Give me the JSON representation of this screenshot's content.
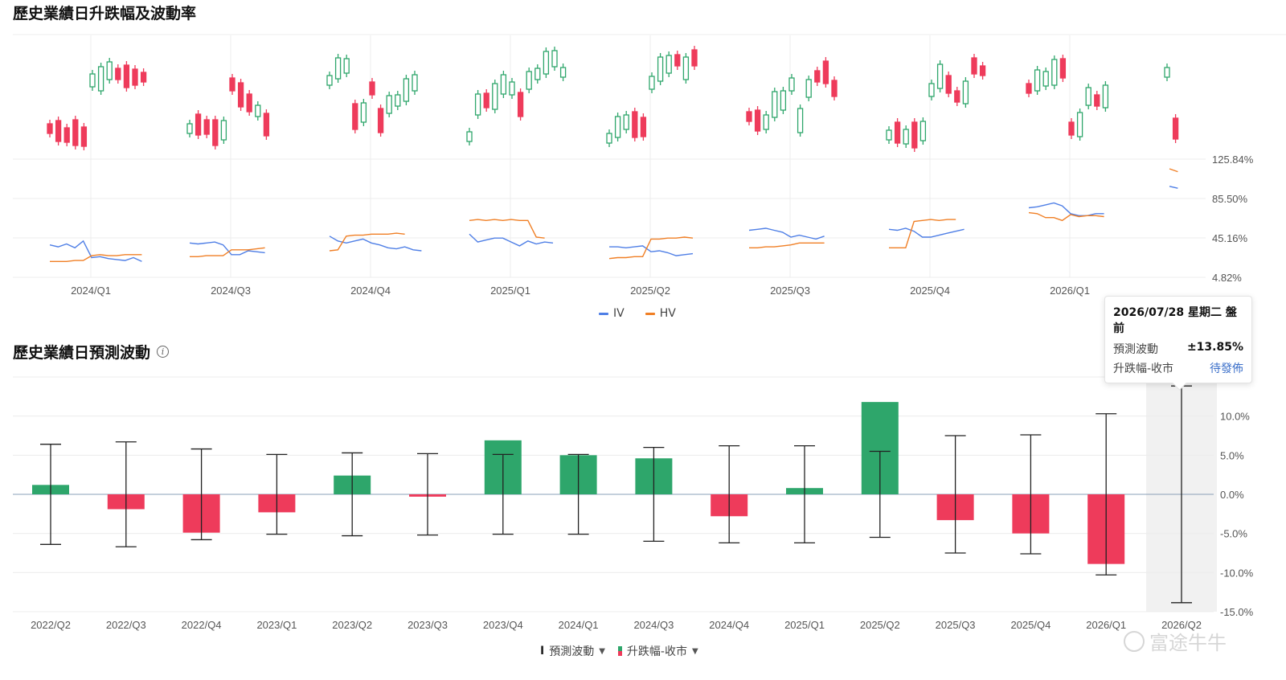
{
  "section1": {
    "title": "歷史業績日升跌幅及波動率",
    "legend": [
      {
        "label": "IV",
        "color": "#4f7fe6"
      },
      {
        "label": "HV",
        "color": "#f07f25"
      }
    ]
  },
  "section2": {
    "title": "歷史業績日預測波動",
    "info_icon": "info-icon",
    "legend": [
      {
        "label": "預測波動",
        "icon": "error-bar-icon"
      },
      {
        "label": "升跌幅-收市",
        "icon": "bar-icon"
      }
    ]
  },
  "tooltip": {
    "date": "2026/07/28 星期二 盤前",
    "rows": [
      {
        "label": "預測波動",
        "value": "±13.85%"
      },
      {
        "label": "升跌幅-收市",
        "value": "待發佈"
      }
    ]
  },
  "watermark": "富途牛牛",
  "colors": {
    "up": "#2ea66b",
    "down": "#ee3b5b",
    "iv": "#4f7fe6",
    "hv": "#f07f25",
    "grid": "#ececec"
  },
  "chart_data": [
    {
      "type": "line",
      "x_labels": [
        "2024/Q1",
        "2024/Q3",
        "2024/Q4",
        "2025/Q1",
        "2025/Q2",
        "2025/Q3",
        "2025/Q4",
        "2026/Q1"
      ],
      "ylim": [
        4.82,
        125.84
      ],
      "y_ticks": [
        "125.84%",
        "85.50%",
        "45.16%",
        "4.82%"
      ],
      "grid": true,
      "series": [
        {
          "name": "IV",
          "segments": [
            [
              38,
              36,
              39,
              35,
              42,
              25,
              26,
              24,
              23,
              22,
              25,
              21
            ],
            [
              40,
              39,
              40,
              41,
              38,
              28,
              28,
              32,
              31,
              30
            ],
            [
              47,
              42,
              40,
              42,
              44,
              40,
              38,
              35,
              34,
              36,
              33,
              32
            ],
            [
              49,
              41,
              43,
              45,
              45,
              41,
              37,
              42,
              39,
              41,
              40
            ],
            [
              36,
              36,
              35,
              36,
              37,
              31,
              32,
              30,
              27,
              28,
              29
            ],
            [
              53,
              54,
              55,
              53,
              51,
              46,
              48,
              46,
              44,
              47
            ],
            [
              54,
              53,
              55,
              52,
              46,
              46,
              48,
              50,
              52,
              54
            ],
            [
              76,
              77,
              79,
              81,
              78,
              70,
              68,
              68,
              70,
              70
            ],
            [
              98,
              96
            ]
          ]
        },
        {
          "name": "HV",
          "segments": [
            [
              21,
              21,
              21,
              22,
              22,
              27,
              28,
              27,
              27,
              28,
              28,
              28
            ],
            [
              26,
              26,
              27,
              27,
              27,
              33,
              33,
              33,
              34,
              35
            ],
            [
              32,
              33,
              47,
              48,
              48,
              49,
              49,
              49,
              50,
              49
            ],
            [
              63,
              64,
              63,
              64,
              63,
              64,
              63,
              63,
              46,
              45
            ],
            [
              24,
              25,
              25,
              26,
              26,
              44,
              44,
              45,
              45,
              46,
              45
            ],
            [
              35,
              35,
              36,
              36,
              37,
              38,
              40,
              40,
              40,
              40
            ],
            [
              35,
              35,
              35,
              62,
              63,
              64,
              63,
              64,
              64
            ],
            [
              71,
              70,
              66,
              66,
              63,
              69,
              67,
              68,
              68,
              67
            ],
            [
              116,
              113
            ]
          ]
        }
      ]
    },
    {
      "type": "bar",
      "categories": [
        "2022/Q2",
        "2022/Q3",
        "2022/Q4",
        "2023/Q1",
        "2023/Q2",
        "2023/Q3",
        "2023/Q4",
        "2024/Q1",
        "2024/Q3",
        "2024/Q4",
        "2025/Q1",
        "2025/Q2",
        "2025/Q3",
        "2025/Q4",
        "2026/Q1",
        "2026/Q2"
      ],
      "series": [
        {
          "name": "升跌幅-收市",
          "values": [
            1.2,
            -1.9,
            -4.9,
            -2.3,
            2.4,
            -0.3,
            6.9,
            5.0,
            4.6,
            -2.8,
            0.8,
            11.8,
            -3.3,
            -5.0,
            -8.9,
            null
          ]
        },
        {
          "name": "預測波動",
          "values": [
            6.4,
            6.7,
            5.8,
            5.1,
            5.3,
            5.2,
            5.1,
            5.1,
            6.0,
            6.2,
            6.2,
            5.5,
            7.5,
            7.6,
            10.3,
            13.85
          ]
        }
      ],
      "ylim": [
        -15,
        15
      ],
      "y_ticks": [
        "15.0%",
        "10.0%",
        "5.0%",
        "0.0%",
        "-5.0%",
        "-10.0%",
        "-15.0%"
      ],
      "highlighted_category": "2026/Q2",
      "grid": true
    }
  ]
}
